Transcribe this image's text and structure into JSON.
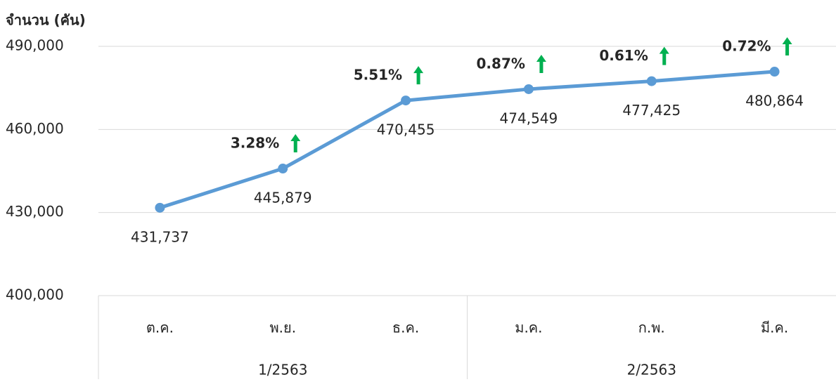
{
  "chart_data": {
    "type": "line",
    "y_axis_label": "จำนวน (คัน)",
    "categories": [
      "ต.ค.",
      "พ.ย.",
      "ธ.ค.",
      "ม.ค.",
      "ก.พ.",
      "มี.ค."
    ],
    "category_groups": [
      "1/2563",
      "1/2563",
      "1/2563",
      "2/2563",
      "2/2563",
      "2/2563"
    ],
    "series": [
      {
        "name": "จำนวน",
        "color": "#5b9bd5",
        "values": [
          431737,
          445879,
          470455,
          474549,
          477425,
          480864
        ],
        "value_labels": [
          "431,737",
          "445,879",
          "470,455",
          "474,549",
          "477,425",
          "480,864"
        ]
      }
    ],
    "annotations": [
      null,
      "3.28%",
      "5.51%",
      "0.87%",
      "0.61%",
      "0.72%"
    ],
    "annotation_color": "#00b050",
    "ylim": [
      400000,
      490000
    ],
    "yticks": [
      {
        "value": 400000,
        "label": "400,000"
      },
      {
        "value": 430000,
        "label": "430,000"
      },
      {
        "value": 460000,
        "label": "460,000"
      },
      {
        "value": 490000,
        "label": "490,000"
      }
    ],
    "grid": true
  }
}
